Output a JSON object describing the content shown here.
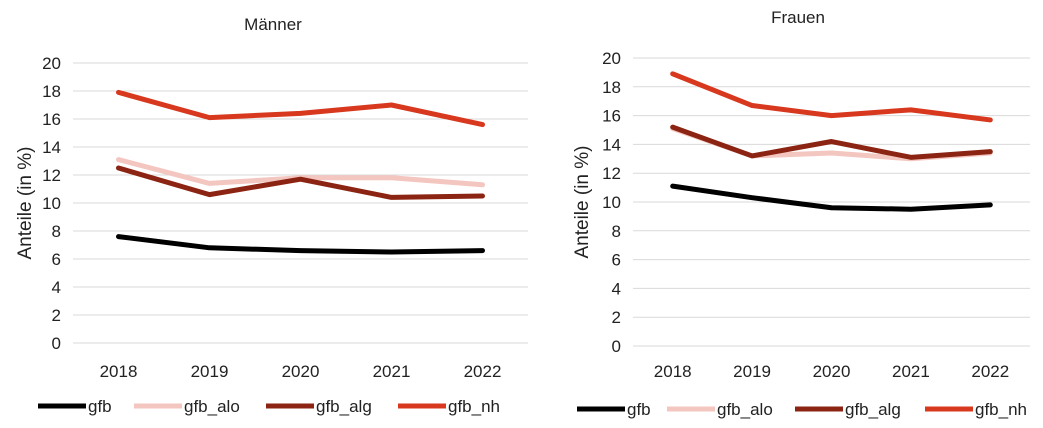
{
  "chart_data": [
    {
      "type": "line",
      "title": "Männer",
      "ylabel": "Anteile (in %)",
      "xlabel": "",
      "categories": [
        "2018",
        "2019",
        "2020",
        "2021",
        "2022"
      ],
      "ylim": [
        0,
        20
      ],
      "yticks": [
        "0",
        "2",
        "4",
        "6",
        "8",
        "10",
        "12",
        "14",
        "16",
        "18",
        "20"
      ],
      "grid": true,
      "legend_position": "bottom",
      "series": [
        {
          "name": "gfb",
          "color": "#000000",
          "values": [
            7.6,
            6.8,
            6.6,
            6.5,
            6.6
          ]
        },
        {
          "name": "gfb_alo",
          "color": "#f4c6c0",
          "values": [
            13.1,
            11.4,
            11.8,
            11.8,
            11.3
          ]
        },
        {
          "name": "gfb_alg",
          "color": "#8b2412",
          "values": [
            12.5,
            10.6,
            11.7,
            10.4,
            10.5
          ]
        },
        {
          "name": "gfb_nh",
          "color": "#d7381e",
          "values": [
            17.9,
            16.1,
            16.4,
            17.0,
            15.6
          ]
        }
      ]
    },
    {
      "type": "line",
      "title": "Frauen",
      "ylabel": "Anteile (in %)",
      "xlabel": "",
      "categories": [
        "2018",
        "2019",
        "2020",
        "2021",
        "2022"
      ],
      "ylim": [
        0,
        20
      ],
      "yticks": [
        "0",
        "2",
        "4",
        "6",
        "8",
        "10",
        "12",
        "14",
        "16",
        "18",
        "20"
      ],
      "grid": true,
      "legend_position": "bottom",
      "series": [
        {
          "name": "gfb",
          "color": "#000000",
          "values": [
            11.1,
            10.3,
            9.6,
            9.5,
            9.8
          ]
        },
        {
          "name": "gfb_alo",
          "color": "#f4c6c0",
          "values": [
            15.1,
            13.2,
            13.4,
            13.0,
            13.4
          ]
        },
        {
          "name": "gfb_alg",
          "color": "#8b2412",
          "values": [
            15.2,
            13.2,
            14.2,
            13.1,
            13.5
          ]
        },
        {
          "name": "gfb_nh",
          "color": "#d7381e",
          "values": [
            18.9,
            16.7,
            16.0,
            16.4,
            15.7
          ]
        }
      ]
    }
  ]
}
